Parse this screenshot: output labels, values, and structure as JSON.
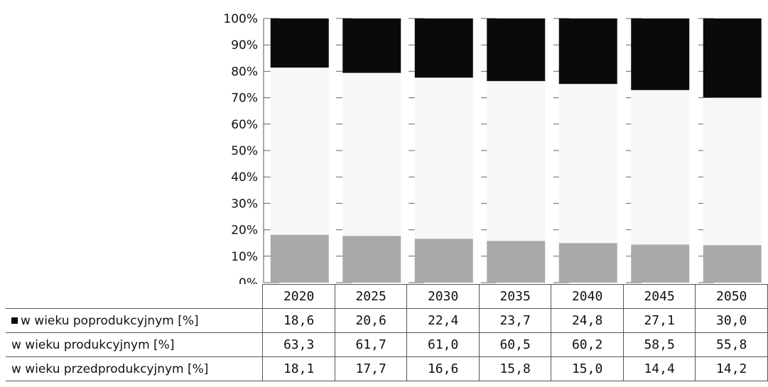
{
  "chart_data": {
    "type": "bar",
    "stacked": true,
    "normalized": true,
    "categories": [
      "2020",
      "2025",
      "2030",
      "2035",
      "2040",
      "2045",
      "2050"
    ],
    "series": [
      {
        "name": "w wieku poprodukcyjnym [%]",
        "values": [
          "18,6",
          "20,6",
          "22,4",
          "23,7",
          "24,8",
          "27,1",
          "30,0"
        ],
        "color": "#0a0a0a"
      },
      {
        "name": "w wieku produkcyjnym [%]",
        "values": [
          "63,3",
          "61,7",
          "61,0",
          "60,5",
          "60,2",
          "58,5",
          "55,8"
        ],
        "color": "#f7f7f7"
      },
      {
        "name": "w wieku przedprodukcyjnym [%]",
        "values": [
          "18,1",
          "17,7",
          "16,6",
          "15,8",
          "15,0",
          "14,4",
          "14,2"
        ],
        "color": "#a9a9a9"
      }
    ],
    "yticks": [
      "0%",
      "10%",
      "20%",
      "30%",
      "40%",
      "50%",
      "60%",
      "70%",
      "80%",
      "90%",
      "100%"
    ],
    "ylim": [
      0,
      100
    ],
    "grid": true,
    "legend": "data-table"
  }
}
